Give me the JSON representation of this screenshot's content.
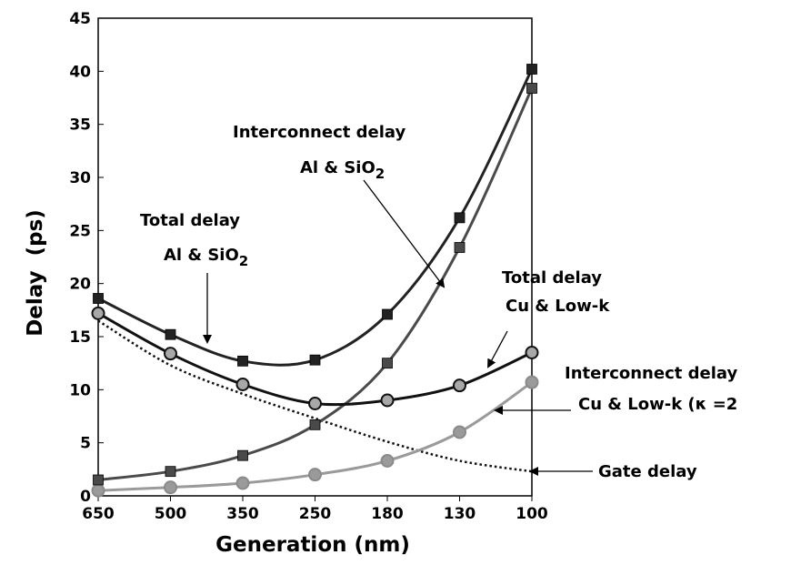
{
  "chart_data": {
    "type": "line",
    "xlabel": "Generation (nm)",
    "ylabel": "Delay  (ps)",
    "categories": [
      "650",
      "500",
      "350",
      "250",
      "180",
      "130",
      "100"
    ],
    "ylim": [
      0,
      45
    ],
    "yticks": [
      0,
      5,
      10,
      15,
      20,
      25,
      30,
      35,
      40,
      45
    ],
    "grid": false,
    "series": [
      {
        "id": "total_al",
        "values": [
          18.6,
          15.2,
          12.7,
          12.8,
          17.1,
          26.2,
          40.2
        ],
        "color": "#222222",
        "marker": "square",
        "line": "solid"
      },
      {
        "id": "inter_al",
        "values": [
          1.5,
          2.3,
          3.8,
          6.7,
          12.5,
          23.4,
          38.4
        ],
        "color": "#4a4a4a",
        "marker": "square",
        "line": "solid"
      },
      {
        "id": "total_cu",
        "values": [
          17.2,
          13.4,
          10.5,
          8.7,
          9.0,
          10.4,
          13.5
        ],
        "color": "#111111",
        "marker": "circle",
        "line": "solid"
      },
      {
        "id": "inter_cu",
        "values": [
          0.5,
          0.8,
          1.2,
          2.0,
          3.3,
          6.0,
          10.7
        ],
        "color": "#9a9a9a",
        "marker": "circle",
        "line": "solid"
      },
      {
        "id": "gate",
        "values": [
          16.5,
          12.3,
          9.6,
          7.3,
          5.1,
          3.3,
          2.3
        ],
        "color": "#111111",
        "marker": "none",
        "line": "dotted"
      }
    ],
    "annotations": [
      {
        "id": "total_al",
        "lines": [
          "Total delay",
          "Al & SiO2"
        ]
      },
      {
        "id": "inter_al",
        "lines": [
          "Interconnect delay",
          "Al & SiO2"
        ]
      },
      {
        "id": "total_cu",
        "lines": [
          "Total delay",
          "Cu & Low-k"
        ]
      },
      {
        "id": "inter_cu",
        "lines": [
          "Interconnect delay",
          "Cu & Low-k (κ =2"
        ]
      },
      {
        "id": "gate",
        "lines": [
          "Gate delay"
        ]
      }
    ]
  }
}
